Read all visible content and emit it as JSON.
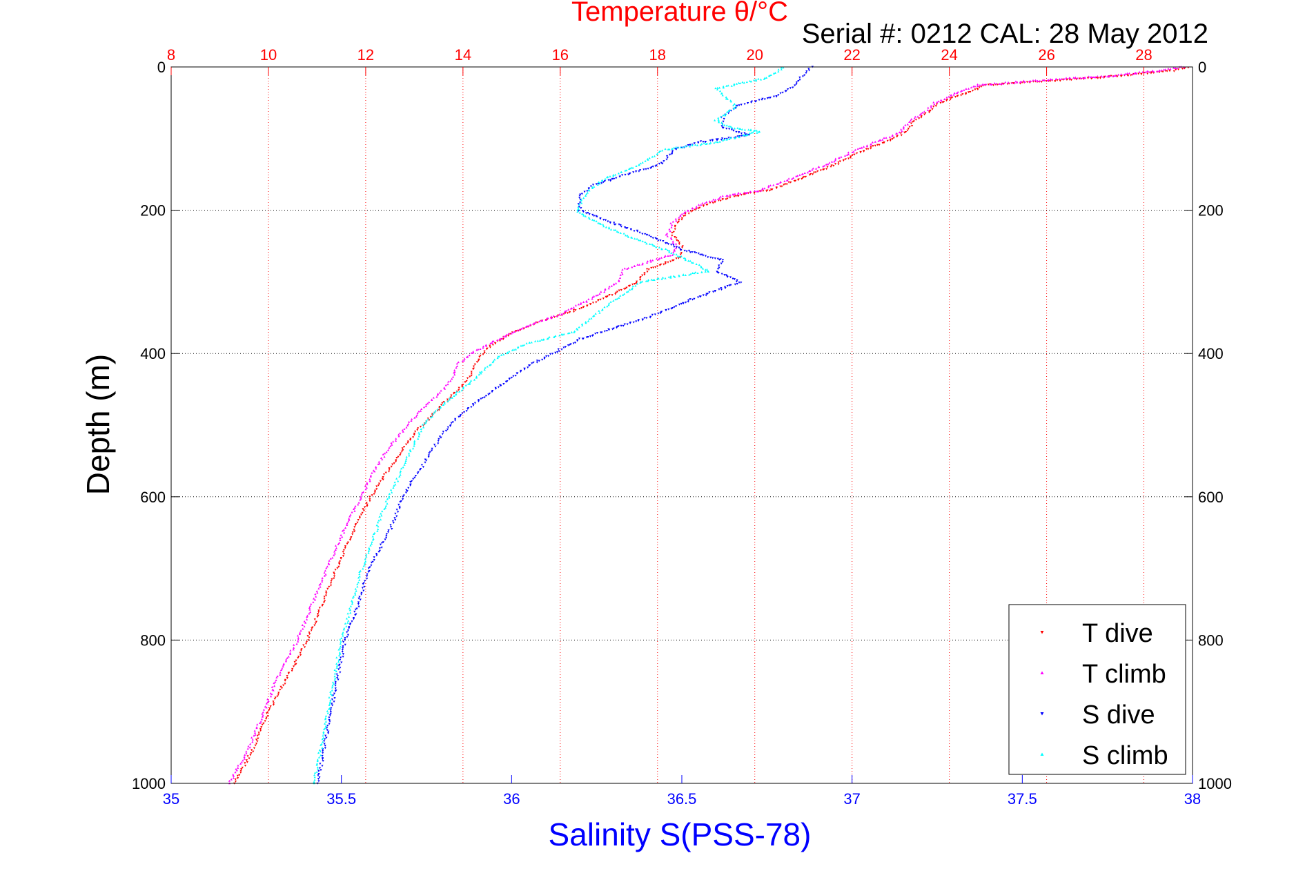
{
  "chart_data": {
    "type": "scatter",
    "top_title": "Temperature θ/°C",
    "serial_label": "Serial #: 0212  CAL: 28 May 2012",
    "xlabel": "Salinity S(PSS-78)",
    "ylabel": "Depth (m)",
    "temperature_axis": {
      "range": [
        8,
        29
      ],
      "ticks": [
        8,
        10,
        12,
        14,
        16,
        18,
        20,
        22,
        24,
        26,
        28
      ],
      "tick_labels": [
        "8",
        "10",
        "12",
        "14",
        "16",
        "18",
        "20",
        "22",
        "24",
        "26",
        "28"
      ]
    },
    "salinity_axis": {
      "range": [
        35,
        38
      ],
      "ticks": [
        35,
        35.5,
        36,
        36.5,
        37,
        37.5,
        38
      ],
      "tick_labels": [
        "35",
        "35.5",
        "36",
        "36.5",
        "37",
        "37.5",
        "38"
      ]
    },
    "depth_axis": {
      "range": [
        0,
        1000
      ],
      "reversed": true,
      "ticks": [
        0,
        200,
        400,
        600,
        800,
        1000
      ],
      "tick_labels": [
        "0",
        "200",
        "400",
        "600",
        "800",
        "1000"
      ]
    },
    "grid": true,
    "legend_position": "bottom-right",
    "series": [
      {
        "name": "T dive",
        "axis": "temperature",
        "marker": "triangle-down",
        "color": "#ff0000",
        "points": [
          [
            28.9,
            0
          ],
          [
            28.6,
            5
          ],
          [
            27.6,
            12
          ],
          [
            26.4,
            18
          ],
          [
            24.8,
            25
          ],
          [
            24.4,
            35
          ],
          [
            23.8,
            50
          ],
          [
            23.6,
            62
          ],
          [
            23.3,
            75
          ],
          [
            23.1,
            90
          ],
          [
            22.8,
            102
          ],
          [
            22.3,
            115
          ],
          [
            21.7,
            135
          ],
          [
            20.8,
            160
          ],
          [
            20.3,
            172
          ],
          [
            19.6,
            180
          ],
          [
            19.0,
            192
          ],
          [
            18.6,
            205
          ],
          [
            18.4,
            218
          ],
          [
            18.3,
            235
          ],
          [
            18.5,
            250
          ],
          [
            18.5,
            265
          ],
          [
            18.3,
            270
          ],
          [
            17.8,
            283
          ],
          [
            17.6,
            300
          ],
          [
            17.0,
            320
          ],
          [
            16.3,
            340
          ],
          [
            15.6,
            355
          ],
          [
            15.0,
            372
          ],
          [
            14.5,
            392
          ],
          [
            14.3,
            410
          ],
          [
            14.2,
            425
          ],
          [
            14.0,
            445
          ],
          [
            13.6,
            470
          ],
          [
            13.1,
            505
          ],
          [
            12.8,
            530
          ],
          [
            12.5,
            560
          ],
          [
            12.1,
            600
          ],
          [
            11.8,
            640
          ],
          [
            11.4,
            700
          ],
          [
            11.1,
            750
          ],
          [
            10.8,
            800
          ],
          [
            10.4,
            850
          ],
          [
            10.0,
            900
          ],
          [
            9.7,
            950
          ],
          [
            9.3,
            1000
          ]
        ]
      },
      {
        "name": "T climb",
        "axis": "temperature",
        "marker": "triangle-up",
        "color": "#ff00ff",
        "points": [
          [
            28.8,
            0
          ],
          [
            28.3,
            5
          ],
          [
            27.4,
            12
          ],
          [
            26.0,
            18
          ],
          [
            24.6,
            25
          ],
          [
            24.2,
            35
          ],
          [
            23.7,
            50
          ],
          [
            23.5,
            62
          ],
          [
            23.2,
            75
          ],
          [
            23.0,
            90
          ],
          [
            22.6,
            102
          ],
          [
            22.1,
            115
          ],
          [
            21.5,
            135
          ],
          [
            20.6,
            160
          ],
          [
            20.1,
            172
          ],
          [
            19.4,
            180
          ],
          [
            18.9,
            192
          ],
          [
            18.5,
            205
          ],
          [
            18.3,
            218
          ],
          [
            18.2,
            235
          ],
          [
            18.4,
            250
          ],
          [
            18.3,
            262
          ],
          [
            17.8,
            272
          ],
          [
            17.3,
            283
          ],
          [
            17.2,
            300
          ],
          [
            16.6,
            325
          ],
          [
            16.0,
            345
          ],
          [
            15.4,
            360
          ],
          [
            14.8,
            378
          ],
          [
            14.2,
            398
          ],
          [
            13.9,
            415
          ],
          [
            13.8,
            430
          ],
          [
            13.6,
            450
          ],
          [
            13.2,
            475
          ],
          [
            12.8,
            505
          ],
          [
            12.5,
            530
          ],
          [
            12.2,
            560
          ],
          [
            11.9,
            600
          ],
          [
            11.6,
            640
          ],
          [
            11.2,
            700
          ],
          [
            10.9,
            750
          ],
          [
            10.6,
            800
          ],
          [
            10.2,
            850
          ],
          [
            9.9,
            900
          ],
          [
            9.6,
            950
          ],
          [
            9.2,
            1000
          ]
        ]
      },
      {
        "name": "S dive",
        "axis": "salinity",
        "marker": "triangle-down",
        "color": "#0000ff",
        "points": [
          [
            36.88,
            0
          ],
          [
            36.85,
            15
          ],
          [
            36.82,
            30
          ],
          [
            36.78,
            40
          ],
          [
            36.66,
            55
          ],
          [
            36.62,
            70
          ],
          [
            36.62,
            85
          ],
          [
            36.7,
            95
          ],
          [
            36.55,
            105
          ],
          [
            36.48,
            115
          ],
          [
            36.44,
            135
          ],
          [
            36.34,
            150
          ],
          [
            36.24,
            165
          ],
          [
            36.2,
            180
          ],
          [
            36.2,
            200
          ],
          [
            36.28,
            215
          ],
          [
            36.4,
            235
          ],
          [
            36.5,
            255
          ],
          [
            36.62,
            270
          ],
          [
            36.6,
            285
          ],
          [
            36.67,
            300
          ],
          [
            36.5,
            330
          ],
          [
            36.4,
            350
          ],
          [
            36.3,
            365
          ],
          [
            36.2,
            380
          ],
          [
            36.12,
            400
          ],
          [
            36.04,
            420
          ],
          [
            35.95,
            450
          ],
          [
            35.85,
            485
          ],
          [
            35.8,
            510
          ],
          [
            35.76,
            540
          ],
          [
            35.72,
            570
          ],
          [
            35.68,
            600
          ],
          [
            35.64,
            650
          ],
          [
            35.58,
            700
          ],
          [
            35.55,
            750
          ],
          [
            35.51,
            800
          ],
          [
            35.49,
            850
          ],
          [
            35.47,
            900
          ],
          [
            35.45,
            950
          ],
          [
            35.43,
            1000
          ]
        ]
      },
      {
        "name": "S climb",
        "axis": "salinity",
        "marker": "triangle-up",
        "color": "#00ffff",
        "points": [
          [
            36.8,
            0
          ],
          [
            36.75,
            15
          ],
          [
            36.65,
            25
          ],
          [
            36.6,
            30
          ],
          [
            36.66,
            55
          ],
          [
            36.6,
            75
          ],
          [
            36.65,
            85
          ],
          [
            36.73,
            90
          ],
          [
            36.6,
            105
          ],
          [
            36.45,
            115
          ],
          [
            36.36,
            140
          ],
          [
            36.28,
            155
          ],
          [
            36.22,
            175
          ],
          [
            36.19,
            200
          ],
          [
            36.24,
            215
          ],
          [
            36.36,
            240
          ],
          [
            36.45,
            255
          ],
          [
            36.52,
            270
          ],
          [
            36.58,
            285
          ],
          [
            36.38,
            300
          ],
          [
            36.32,
            320
          ],
          [
            36.25,
            345
          ],
          [
            36.18,
            370
          ],
          [
            36.05,
            385
          ],
          [
            35.96,
            405
          ],
          [
            35.88,
            440
          ],
          [
            35.8,
            470
          ],
          [
            35.74,
            500
          ],
          [
            35.7,
            540
          ],
          [
            35.66,
            580
          ],
          [
            35.62,
            620
          ],
          [
            35.6,
            650
          ],
          [
            35.56,
            700
          ],
          [
            35.53,
            750
          ],
          [
            35.5,
            800
          ],
          [
            35.48,
            850
          ],
          [
            35.46,
            900
          ],
          [
            35.44,
            950
          ],
          [
            35.42,
            1000
          ]
        ]
      }
    ]
  }
}
